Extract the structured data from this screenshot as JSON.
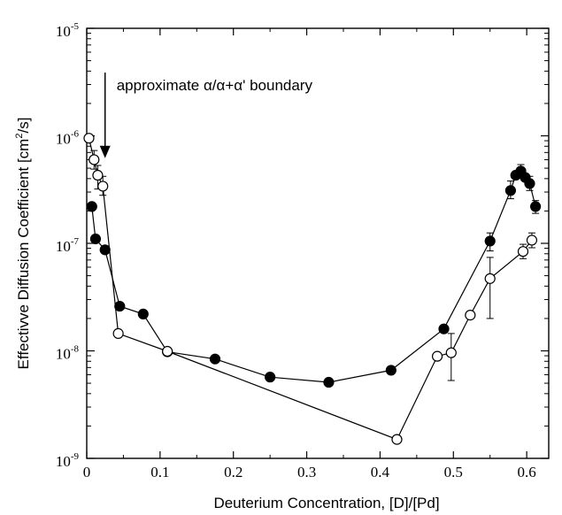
{
  "chart_data": {
    "type": "scatter",
    "y_scale": "log",
    "grid": false,
    "xlabel": "Deuterium Concentration, [D]/[Pd]",
    "ylabel_parts": [
      "Effectivve Diffusion Coefficient [cm",
      "2",
      "/s]"
    ],
    "xlim": [
      0,
      0.63
    ],
    "ylim": [
      1e-09,
      1e-05
    ],
    "x_ticks": [
      0,
      0.1,
      0.2,
      0.3,
      0.4,
      0.5,
      0.6
    ],
    "x_tick_labels": [
      "0",
      "0.1",
      "0.2",
      "0.3",
      "0.4",
      "0.5",
      "0.6"
    ],
    "y_tick_exponents": [
      -9,
      -8,
      -7,
      -6,
      -5
    ],
    "y_tick_base": "10",
    "annotation": {
      "text": "approximate α/α+α' boundary",
      "x": 0.025,
      "arrow_tip_y": 6.2e-07
    },
    "series": [
      {
        "marker": "filled-circle",
        "points": [
          {
            "x": 0.007,
            "y": 2.2e-07
          },
          {
            "x": 0.012,
            "y": 1.1e-07
          },
          {
            "x": 0.025,
            "y": 8.7e-08
          },
          {
            "x": 0.045,
            "y": 2.6e-08
          },
          {
            "x": 0.077,
            "y": 2.2e-08
          },
          {
            "x": 0.11,
            "y": 9.8e-09
          },
          {
            "x": 0.175,
            "y": 8.4e-09
          },
          {
            "x": 0.25,
            "y": 5.7e-09
          },
          {
            "x": 0.33,
            "y": 5.1e-09
          },
          {
            "x": 0.415,
            "y": 6.6e-09
          },
          {
            "x": 0.487,
            "y": 1.6e-08
          },
          {
            "x": 0.55,
            "y": 1.05e-07,
            "err": [
              8.5e-08,
              1.25e-07
            ]
          },
          {
            "x": 0.578,
            "y": 3.1e-07,
            "err": [
              2.6e-07,
              3.8e-07
            ]
          },
          {
            "x": 0.585,
            "y": 4.3e-07
          },
          {
            "x": 0.592,
            "y": 4.7e-07,
            "err": [
              4.1e-07,
              5.4e-07
            ]
          },
          {
            "x": 0.598,
            "y": 4.1e-07
          },
          {
            "x": 0.604,
            "y": 3.6e-07,
            "err": [
              3.1e-07,
              4.2e-07
            ]
          },
          {
            "x": 0.612,
            "y": 2.2e-07,
            "err": [
              1.9e-07,
              2.5e-07
            ]
          }
        ]
      },
      {
        "marker": "open-circle",
        "points": [
          {
            "x": 0.003,
            "y": 9.5e-07
          },
          {
            "x": 0.01,
            "y": 6e-07,
            "err": [
              4.9e-07,
              7.3e-07
            ]
          },
          {
            "x": 0.015,
            "y": 4.3e-07,
            "err": [
              3.2e-07,
              5.3e-07
            ]
          },
          {
            "x": 0.022,
            "y": 3.4e-07,
            "err": [
              2.8e-07,
              4.2e-07
            ]
          },
          {
            "x": 0.043,
            "y": 1.45e-08
          },
          {
            "x": 0.11,
            "y": 9.9e-09
          },
          {
            "x": 0.423,
            "y": 1.5e-09
          },
          {
            "x": 0.478,
            "y": 8.9e-09
          },
          {
            "x": 0.497,
            "y": 9.6e-09,
            "err": [
              5.3e-09,
              1.45e-08
            ]
          },
          {
            "x": 0.523,
            "y": 2.15e-08
          },
          {
            "x": 0.55,
            "y": 4.7e-08,
            "err": [
              2e-08,
              7.4e-08
            ]
          },
          {
            "x": 0.595,
            "y": 8.4e-08,
            "err": [
              7.2e-08,
              9.8e-08
            ]
          },
          {
            "x": 0.607,
            "y": 1.07e-07,
            "err": [
              9.1e-08,
              1.25e-07
            ]
          }
        ]
      }
    ]
  }
}
